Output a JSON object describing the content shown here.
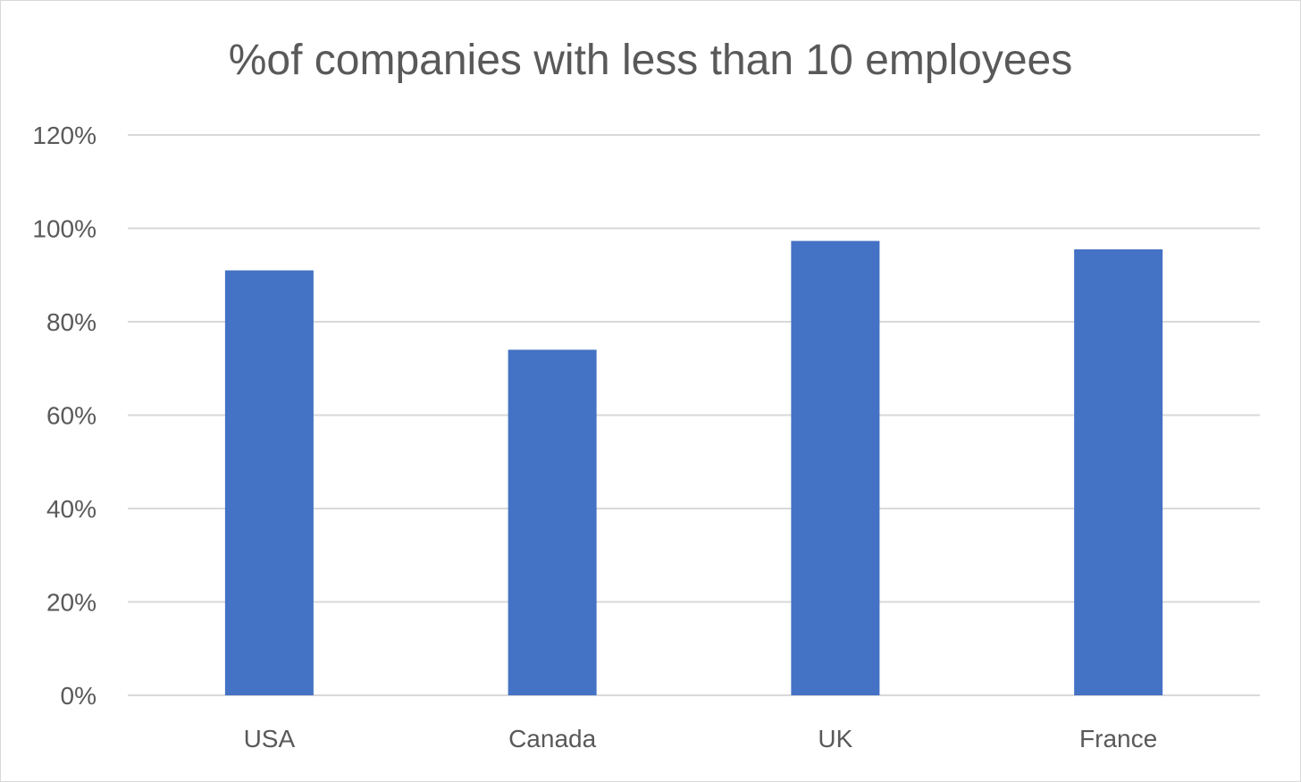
{
  "chart_data": {
    "type": "bar",
    "title": "%of companies with less than 10 employees",
    "xlabel": "",
    "ylabel": "",
    "categories": [
      "USA",
      "Canada",
      "UK",
      "France"
    ],
    "values": [
      0.91,
      0.74,
      0.973,
      0.955
    ],
    "ylim": [
      0,
      1.2
    ],
    "yticks": [
      0,
      0.2,
      0.4,
      0.6,
      0.8,
      1.0,
      1.2
    ],
    "ytick_labels": [
      "0%",
      "20%",
      "40%",
      "60%",
      "80%",
      "100%",
      "120%"
    ],
    "grid": true,
    "legend": "none",
    "bar_color": "#4472c4",
    "grid_color": "#d9d9d9",
    "text_color": "#595959"
  }
}
